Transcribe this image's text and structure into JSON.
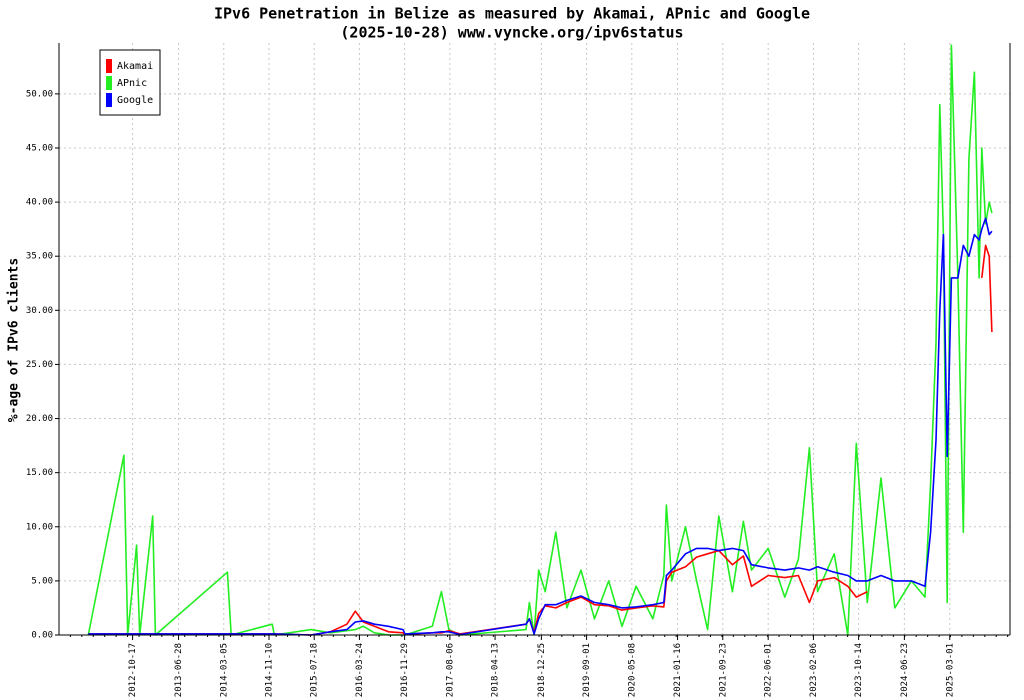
{
  "chart_data": {
    "type": "line",
    "title": "IPv6 Penetration in Belize as measured by Akamai, APnic and Google",
    "subtitle": "(2025-10-28) www.vyncke.org/ipv6status",
    "y_label": "%-age of IPv6 clients",
    "x": [
      "2012-02-15",
      "2012-08-30",
      "2012-09-20",
      "2012-11-08",
      "2012-11-25",
      "2013-02-05",
      "2013-02-20",
      "2014-03-25",
      "2014-04-15",
      "2014-11-28",
      "2014-12-10",
      "2015-07-01",
      "2015-10-15",
      "2016-01-15",
      "2016-03-01",
      "2016-04-15",
      "2016-06-15",
      "2016-09-01",
      "2016-11-20",
      "2016-12-01",
      "2017-05-01",
      "2017-06-20",
      "2017-08-01",
      "2017-10-01",
      "2018-10-01",
      "2018-10-20",
      "2018-11-15",
      "2018-12-10",
      "2019-01-15",
      "2019-03-15",
      "2019-05-15",
      "2019-08-01",
      "2019-10-15",
      "2020-01-01",
      "2020-03-15",
      "2020-06-01",
      "2020-09-01",
      "2020-11-01",
      "2020-11-15",
      "2020-12-15",
      "2021-03-01",
      "2021-05-01",
      "2021-07-01",
      "2021-09-01",
      "2021-11-15",
      "2022-01-15",
      "2022-03-01",
      "2022-06-01",
      "2022-09-01",
      "2022-11-15",
      "2023-01-15",
      "2023-03-01",
      "2023-06-01",
      "2023-08-15",
      "2023-10-01",
      "2023-12-01",
      "2024-02-15",
      "2024-05-01",
      "2024-08-01",
      "2024-10-15",
      "2024-11-15",
      "2024-12-15",
      "2025-01-05",
      "2025-01-25",
      "2025-02-15",
      "2025-03-10",
      "2025-04-15",
      "2025-05-15",
      "2025-06-15",
      "2025-07-15",
      "2025-08-10",
      "2025-08-25",
      "2025-09-15",
      "2025-10-05",
      "2025-10-20"
    ],
    "series": [
      {
        "name": "APnic",
        "color": "#22ee22",
        "values": [
          0,
          16.6,
          0,
          8.3,
          0,
          11,
          0,
          5.8,
          0,
          1.0,
          0,
          0.5,
          0.2,
          0.4,
          0.5,
          0.8,
          0.2,
          0,
          0,
          0,
          0.8,
          4.0,
          0.5,
          0,
          0.5,
          3.0,
          0,
          6,
          4,
          9.5,
          2.5,
          6,
          1.5,
          5,
          0.8,
          4.5,
          1.5,
          5.5,
          12,
          5,
          10,
          5,
          0.5,
          11,
          4,
          10.5,
          6.0,
          8,
          3.5,
          7,
          17.3,
          4,
          7.5,
          0,
          17.7,
          3,
          14.5,
          2.5,
          5,
          3.5,
          14,
          27,
          49,
          37,
          3,
          54.5,
          33,
          9.5,
          44,
          52,
          33,
          45,
          38,
          40,
          39
        ]
      },
      {
        "name": "Akamai",
        "color": "#ff0000",
        "values": [
          0.1,
          0.1,
          0.1,
          0.1,
          0.1,
          0.1,
          0.1,
          0.1,
          0.1,
          0.1,
          0.1,
          0,
          0.3,
          1.0,
          2.2,
          1.2,
          0.8,
          0.3,
          0.2,
          0.05,
          0.2,
          0.2,
          0.4,
          0.1,
          1.0,
          1.5,
          0.2,
          2.0,
          2.7,
          2.5,
          3.0,
          3.5,
          2.8,
          2.7,
          2.3,
          2.5,
          2.7,
          2.6,
          5.0,
          5.8,
          6.3,
          7.2,
          7.5,
          7.8,
          6.5,
          7.3,
          4.5,
          5.5,
          5.3,
          5.5,
          3.0,
          5.0,
          5.3,
          4.5,
          3.5,
          4.0,
          null,
          null,
          null,
          null,
          null,
          null,
          null,
          null,
          null,
          null,
          null,
          null,
          null,
          null,
          null,
          33,
          36,
          35,
          28
        ]
      },
      {
        "name": "Google",
        "color": "#0000ff",
        "values": [
          0.1,
          0.1,
          0.1,
          0.1,
          0.1,
          0.1,
          0.1,
          0.1,
          0.1,
          0.1,
          0.1,
          0,
          0.3,
          0.5,
          1.2,
          1.3,
          1.0,
          0.8,
          0.5,
          0.1,
          0.2,
          0.3,
          0.3,
          0.05,
          1.0,
          1.5,
          0.1,
          1.5,
          2.8,
          2.8,
          3.2,
          3.6,
          3.0,
          2.8,
          2.5,
          2.6,
          2.8,
          3.0,
          5.5,
          6.0,
          7.5,
          8.0,
          8.0,
          7.8,
          8.0,
          7.8,
          6.5,
          6.2,
          6.0,
          6.2,
          6.0,
          6.3,
          5.8,
          5.5,
          5.0,
          5.0,
          5.5,
          5.0,
          5.0,
          4.5,
          9.5,
          18,
          30,
          37,
          16.5,
          33,
          33,
          36,
          35,
          37,
          36.5,
          37.5,
          38.5,
          37,
          37.3
        ]
      }
    ],
    "xlim": [
      "2011-09-06",
      "2026-01-28"
    ],
    "xticks": [
      "2012-10-17",
      "2013-06-28",
      "2014-03-05",
      "2014-11-10",
      "2015-07-18",
      "2016-03-24",
      "2016-11-29",
      "2017-08-06",
      "2018-04-13",
      "2018-12-25",
      "2019-09-01",
      "2020-05-08",
      "2021-01-16",
      "2021-09-23",
      "2022-06-01",
      "2023-02-06",
      "2023-10-14",
      "2024-06-23",
      "2025-03-01"
    ],
    "ylim": [
      0,
      54.7
    ],
    "yticks": [
      {
        "value": 0,
        "label": "0.00"
      },
      {
        "value": 5,
        "label": "5.00"
      },
      {
        "value": 10,
        "label": "10.00"
      },
      {
        "value": 15,
        "label": "15.00"
      },
      {
        "value": 20,
        "label": "20.00"
      },
      {
        "value": 25,
        "label": "25.00"
      },
      {
        "value": 30,
        "label": "30.00"
      },
      {
        "value": 35,
        "label": "35.00"
      },
      {
        "value": 40,
        "label": "40.00"
      },
      {
        "value": 45,
        "label": "45.00"
      },
      {
        "value": 50,
        "label": "50.00"
      }
    ],
    "grid": true,
    "legend": "top-left"
  }
}
